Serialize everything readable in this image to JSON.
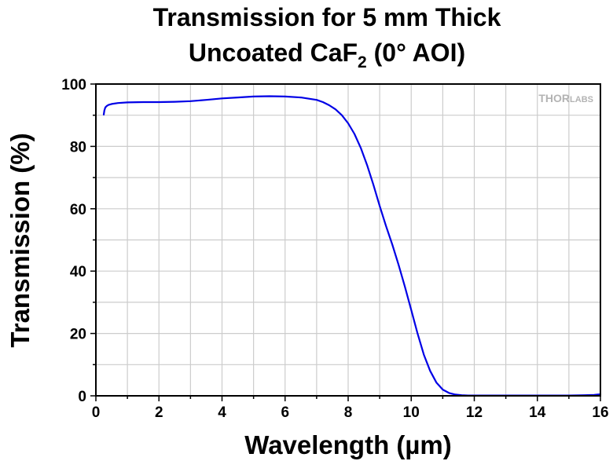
{
  "chart_data": {
    "type": "line",
    "title": {
      "line1": "Transmission for 5 mm Thick",
      "line2_main": "Uncoated CaF",
      "line2_sub": "2",
      "line2_rest": " (0° AOI)"
    },
    "xlabel": "Wavelength (µm)",
    "ylabel": "Transmission (%)",
    "xlim": [
      0,
      16
    ],
    "ylim": [
      0,
      100
    ],
    "x_ticks": [
      0,
      2,
      4,
      6,
      8,
      10,
      12,
      14,
      16
    ],
    "y_ticks": [
      0,
      20,
      40,
      60,
      80,
      100
    ],
    "x_tick_labels": [
      "0",
      "2",
      "4",
      "6",
      "8",
      "10",
      "12",
      "14",
      "16"
    ],
    "y_tick_labels": [
      "0",
      "20",
      "40",
      "60",
      "80",
      "100"
    ],
    "grid": true,
    "series": [
      {
        "color": "#0000e6",
        "x": [
          0.25,
          0.27,
          0.3,
          0.35,
          0.4,
          0.5,
          0.7,
          1,
          1.5,
          2,
          2.5,
          3,
          3.5,
          4,
          4.5,
          5,
          5.5,
          6,
          6.5,
          7,
          7.2,
          7.4,
          7.6,
          7.8,
          8.0,
          8.2,
          8.4,
          8.6,
          8.8,
          9.0,
          9.2,
          9.4,
          9.6,
          9.8,
          10.0,
          10.2,
          10.4,
          10.6,
          10.8,
          11.0,
          11.2,
          11.4,
          11.6,
          11.8,
          12.0,
          12.5,
          13,
          14,
          15,
          15.5,
          15.8,
          16
        ],
        "y": [
          90.2,
          91.5,
          92.5,
          93.0,
          93.3,
          93.6,
          93.9,
          94.1,
          94.2,
          94.2,
          94.3,
          94.5,
          94.9,
          95.4,
          95.7,
          96.0,
          96.1,
          96.0,
          95.7,
          94.9,
          94.2,
          93.2,
          91.9,
          90.0,
          87.4,
          84.0,
          79.5,
          74.0,
          67.7,
          60.9,
          54.5,
          48.5,
          42.0,
          35.0,
          27.5,
          20.0,
          13.2,
          8.0,
          4.2,
          2.0,
          0.9,
          0.4,
          0.2,
          0.1,
          0.1,
          0.1,
          0.1,
          0.1,
          0.1,
          0.2,
          0.3,
          0.5
        ]
      }
    ],
    "watermark": {
      "thor": "THOR",
      "labs": "LABS"
    }
  }
}
